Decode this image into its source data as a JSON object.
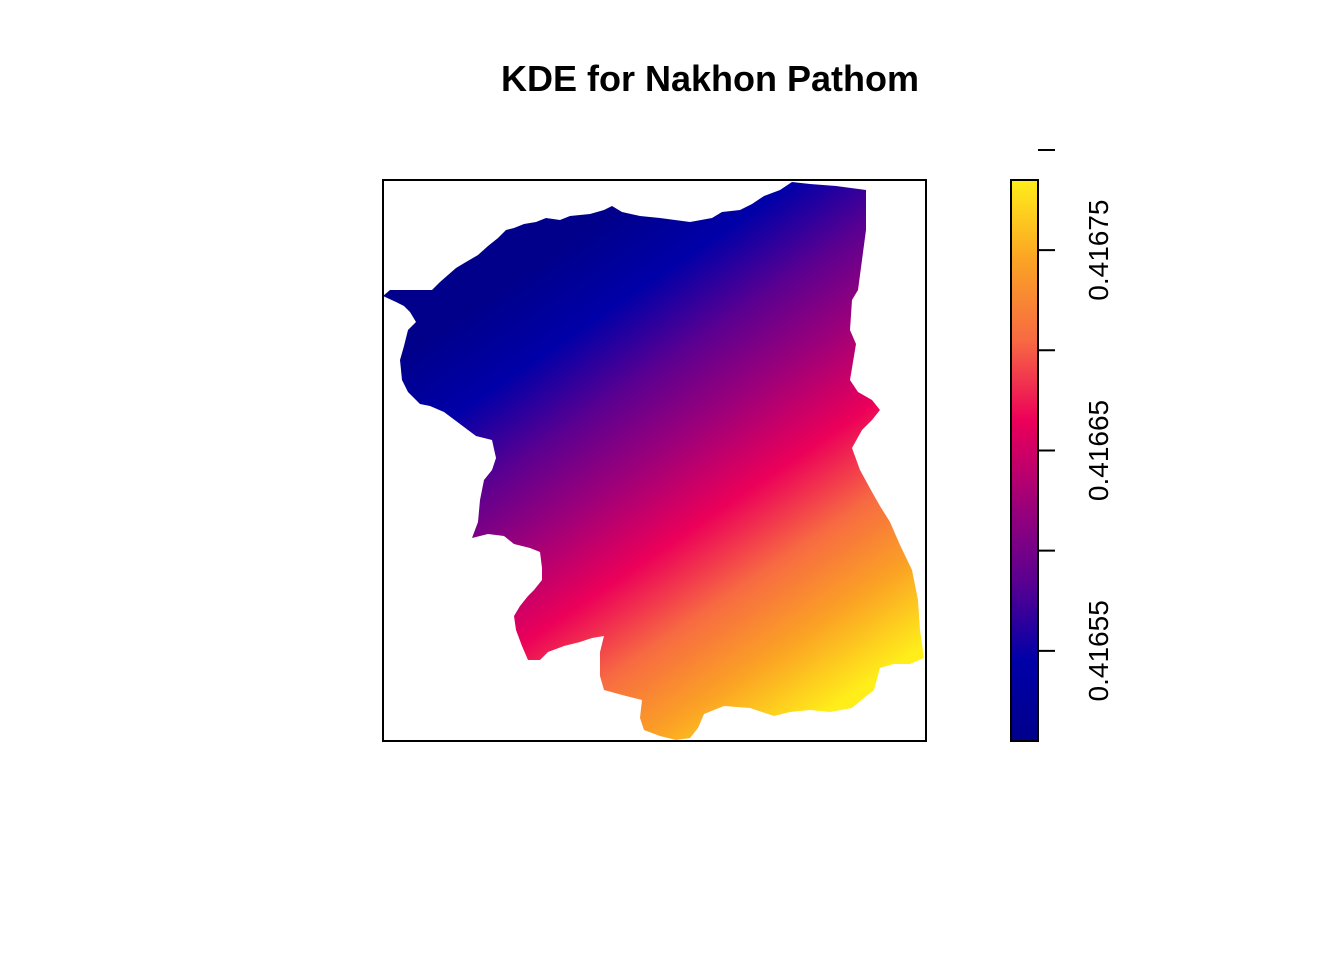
{
  "chart_data": {
    "type": "heatmap",
    "title": "KDE for Nakhon Pathom",
    "xlabel": "",
    "ylabel": "",
    "legend": {
      "placement": "right",
      "type": "colorbar",
      "range": [
        0.416505,
        0.416785
      ],
      "ticks": [
        0.41655,
        0.4166,
        0.41665,
        0.4167,
        0.41675,
        0.4168
      ],
      "tick_labels": [
        "0.41655",
        "",
        "0.41665",
        "",
        "0.41675",
        ""
      ],
      "colors": [
        "#00008B",
        "#0000A8",
        "#5B0091",
        "#A10078",
        "#EC0059",
        "#F76A42",
        "#FBA324",
        "#FFEE1A"
      ]
    },
    "gradient_direction": "low values northwest, high values southeast",
    "grid": false,
    "axes_visible": false
  }
}
